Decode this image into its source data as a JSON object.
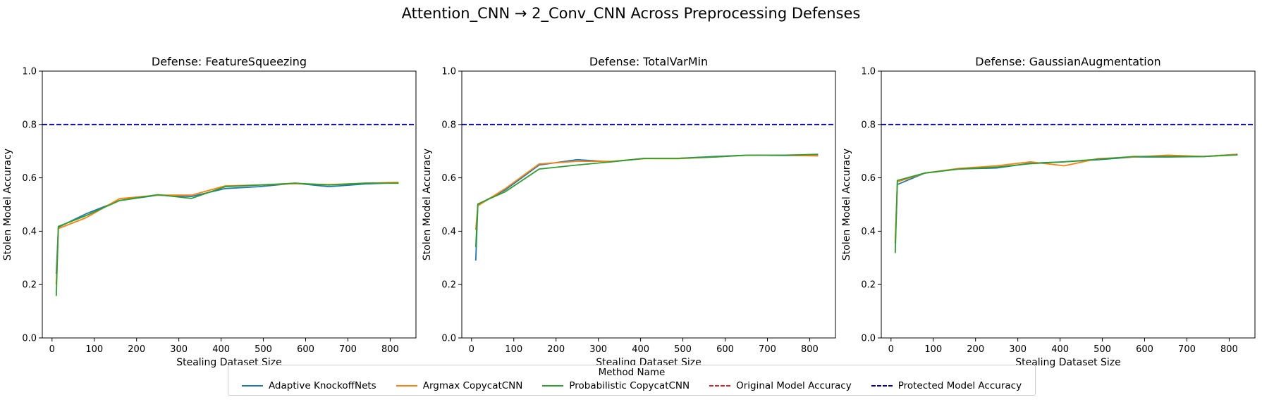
{
  "figure": {
    "suptitle": "Attention_CNN → 2_Conv_CNN Across Preprocessing Defenses"
  },
  "legend": {
    "title": "Method Name",
    "items": [
      {
        "label": "Adaptive KnockoffNets",
        "color": "#1f77b4",
        "style": "solid"
      },
      {
        "label": "Argmax CopycatCNN",
        "color": "#ff7f0e",
        "style": "solid"
      },
      {
        "label": "Probabilistic CopycatCNN",
        "color": "#2ca02c",
        "style": "solid"
      },
      {
        "label": "Original Model Accuracy",
        "color": "#d62728",
        "style": "dashed"
      },
      {
        "label": "Protected Model Accuracy",
        "color": "#0000aa",
        "style": "dashed"
      }
    ]
  },
  "chart_data": [
    {
      "type": "line",
      "title": "Defense: FeatureSqueezing",
      "xlabel": "Stealing Dataset Size",
      "ylabel": "Stolen Model Accuracy",
      "xlim": [
        -23,
        861
      ],
      "ylim": [
        0.0,
        1.0
      ],
      "xticks": [
        0,
        100,
        200,
        300,
        400,
        500,
        600,
        700,
        800
      ],
      "yticks": [
        0.0,
        0.2,
        0.4,
        0.6,
        0.8,
        1.0
      ],
      "grid": false,
      "hlines": [
        {
          "name": "Protected Model Accuracy",
          "y": 0.8,
          "color": "#0000aa",
          "style": "dashed"
        }
      ],
      "series": [
        {
          "name": "Adaptive KnockoffNets",
          "color": "#1f77b4",
          "x": [
            10,
            15,
            80,
            160,
            250,
            330,
            410,
            490,
            575,
            655,
            740,
            820
          ],
          "y": [
            0.24,
            0.415,
            0.465,
            0.515,
            0.535,
            0.53,
            0.56,
            0.567,
            0.58,
            0.567,
            0.577,
            0.582
          ]
        },
        {
          "name": "Argmax CopycatCNN",
          "color": "#ff7f0e",
          "x": [
            10,
            15,
            80,
            160,
            250,
            330,
            410,
            490,
            575,
            655,
            740,
            820
          ],
          "y": [
            0.2,
            0.41,
            0.45,
            0.522,
            0.535,
            0.535,
            0.57,
            0.573,
            0.578,
            0.575,
            0.58,
            0.583
          ]
        },
        {
          "name": "Probabilistic CopycatCNN",
          "color": "#2ca02c",
          "x": [
            10,
            15,
            80,
            160,
            250,
            330,
            410,
            490,
            575,
            655,
            740,
            820
          ],
          "y": [
            0.157,
            0.418,
            0.458,
            0.515,
            0.537,
            0.523,
            0.567,
            0.573,
            0.58,
            0.573,
            0.58,
            0.58
          ]
        }
      ]
    },
    {
      "type": "line",
      "title": "Defense: TotalVarMin",
      "xlabel": "Stealing Dataset Size",
      "ylabel": "Stolen Model Accuracy",
      "xlim": [
        -23,
        861
      ],
      "ylim": [
        0.0,
        1.0
      ],
      "xticks": [
        0,
        100,
        200,
        300,
        400,
        500,
        600,
        700,
        800
      ],
      "yticks": [
        0.0,
        0.2,
        0.4,
        0.6,
        0.8,
        1.0
      ],
      "grid": false,
      "hlines": [
        {
          "name": "Protected Model Accuracy",
          "y": 0.8,
          "color": "#0000aa",
          "style": "dashed"
        }
      ],
      "series": [
        {
          "name": "Adaptive KnockoffNets",
          "color": "#1f77b4",
          "x": [
            10,
            15,
            80,
            160,
            250,
            330,
            410,
            490,
            575,
            655,
            740,
            820
          ],
          "y": [
            0.29,
            0.5,
            0.555,
            0.648,
            0.668,
            0.66,
            0.673,
            0.673,
            0.68,
            0.685,
            0.684,
            0.683
          ]
        },
        {
          "name": "Argmax CopycatCNN",
          "color": "#ff7f0e",
          "x": [
            10,
            15,
            80,
            160,
            250,
            330,
            410,
            490,
            575,
            655,
            740,
            820
          ],
          "y": [
            0.405,
            0.495,
            0.56,
            0.652,
            0.662,
            0.662,
            0.672,
            0.672,
            0.678,
            0.685,
            0.685,
            0.682
          ]
        },
        {
          "name": "Probabilistic CopycatCNN",
          "color": "#2ca02c",
          "x": [
            10,
            15,
            80,
            160,
            250,
            330,
            410,
            490,
            575,
            655,
            740,
            820
          ],
          "y": [
            0.34,
            0.502,
            0.548,
            0.633,
            0.648,
            0.66,
            0.673,
            0.673,
            0.678,
            0.685,
            0.685,
            0.688
          ]
        }
      ]
    },
    {
      "type": "line",
      "title": "Defense: GaussianAugmentation",
      "xlabel": "Stealing Dataset Size",
      "ylabel": "Stolen Model Accuracy",
      "xlim": [
        -23,
        861
      ],
      "ylim": [
        0.0,
        1.0
      ],
      "xticks": [
        0,
        100,
        200,
        300,
        400,
        500,
        600,
        700,
        800
      ],
      "yticks": [
        0.0,
        0.2,
        0.4,
        0.6,
        0.8,
        1.0
      ],
      "grid": false,
      "hlines": [
        {
          "name": "Protected Model Accuracy",
          "y": 0.8,
          "color": "#0000aa",
          "style": "dashed"
        }
      ],
      "series": [
        {
          "name": "Adaptive KnockoffNets",
          "color": "#1f77b4",
          "x": [
            10,
            15,
            80,
            160,
            250,
            330,
            410,
            490,
            575,
            655,
            740,
            820
          ],
          "y": [
            0.355,
            0.575,
            0.618,
            0.633,
            0.637,
            0.655,
            0.66,
            0.668,
            0.678,
            0.678,
            0.68,
            0.688
          ]
        },
        {
          "name": "Argmax CopycatCNN",
          "color": "#ff7f0e",
          "x": [
            10,
            15,
            80,
            160,
            250,
            330,
            410,
            490,
            575,
            655,
            740,
            820
          ],
          "y": [
            0.365,
            0.585,
            0.618,
            0.635,
            0.645,
            0.66,
            0.645,
            0.672,
            0.678,
            0.685,
            0.68,
            0.688
          ]
        },
        {
          "name": "Probabilistic CopycatCNN",
          "color": "#2ca02c",
          "x": [
            10,
            15,
            80,
            160,
            250,
            330,
            410,
            490,
            575,
            655,
            740,
            820
          ],
          "y": [
            0.318,
            0.59,
            0.618,
            0.633,
            0.64,
            0.653,
            0.66,
            0.67,
            0.68,
            0.68,
            0.68,
            0.686
          ]
        }
      ]
    }
  ]
}
